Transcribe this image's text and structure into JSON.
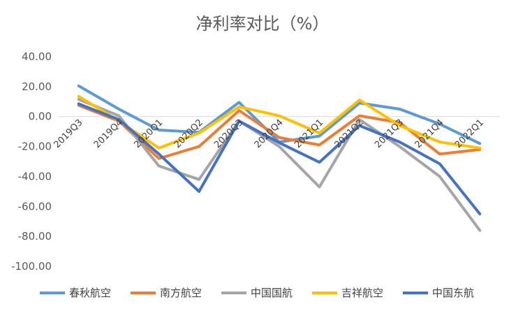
{
  "chart_data": {
    "type": "line",
    "title": "净利率对比（%）",
    "xlabel": "",
    "ylabel": "",
    "ylim": [
      -100,
      40
    ],
    "yticks": [
      "40.00",
      "20.00",
      "0.00",
      "-20.00",
      "-40.00",
      "-60.00",
      "-80.00",
      "-100.00"
    ],
    "categories": [
      "2019Q3",
      "2019Q4",
      "2020Q1",
      "2020Q2",
      "2020Q3",
      "2020Q4",
      "2021Q1",
      "2021Q2",
      "2021Q3",
      "2021Q4",
      "2022Q1"
    ],
    "grid": false,
    "legend_position": "bottom",
    "series": [
      {
        "name": "春秋航空",
        "color": "#5b9bd5",
        "values": [
          20.5,
          5.0,
          -9.0,
          -10.5,
          9.5,
          -17.0,
          -13.0,
          9.0,
          5.0,
          -5.0,
          -18.0
        ]
      },
      {
        "name": "南方航空",
        "color": "#ed7d31",
        "values": [
          7.5,
          -3.0,
          -28.0,
          -20.0,
          4.0,
          -14.0,
          -19.0,
          0.5,
          -4.0,
          -25.0,
          -22.0
        ]
      },
      {
        "name": "中国国航",
        "color": "#a5a5a5",
        "values": [
          11.5,
          0.5,
          -33.0,
          -42.0,
          -3.0,
          -20.0,
          -47.0,
          -2.0,
          -20.0,
          -40.0,
          -76.0
        ]
      },
      {
        "name": "吉祥航空",
        "color": "#ffc000",
        "values": [
          13.5,
          -3.0,
          -21.0,
          -11.0,
          6.5,
          0.5,
          -11.0,
          11.0,
          -6.0,
          -17.0,
          -21.0
        ]
      },
      {
        "name": "中国东航",
        "color": "#4472c4",
        "values": [
          8.5,
          -2.0,
          -25.0,
          -50.0,
          -3.0,
          -17.5,
          -30.5,
          -6.0,
          -17.0,
          -31.5,
          -65.0
        ]
      }
    ]
  }
}
